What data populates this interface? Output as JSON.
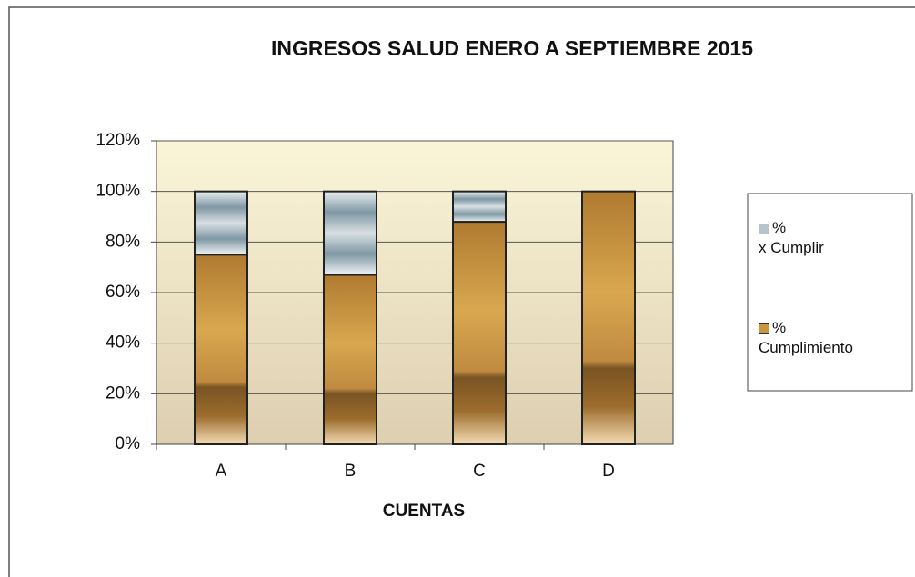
{
  "chart_data": {
    "type": "bar",
    "stacked": true,
    "title": "INGRESOS SALUD ENERO A SEPTIEMBRE 2015",
    "x_label": "CUENTAS",
    "categories": [
      "A",
      "B",
      "C",
      "D"
    ],
    "series": [
      {
        "name": "%\nCumplimiento",
        "color": "#c8963c",
        "values": [
          75,
          67,
          88,
          100
        ]
      },
      {
        "name": "%\nx Cumplir",
        "color": "#b8c4cc",
        "values": [
          25,
          33,
          12,
          0
        ]
      }
    ],
    "ylim": [
      0,
      120
    ],
    "yticks": [
      {
        "value": 0,
        "label": "0%"
      },
      {
        "value": 20,
        "label": "20%"
      },
      {
        "value": 40,
        "label": "40%"
      },
      {
        "value": 60,
        "label": "60%"
      },
      {
        "value": 80,
        "label": "80%"
      },
      {
        "value": 100,
        "label": "100%"
      },
      {
        "value": 120,
        "label": "120%"
      }
    ],
    "grid": true,
    "legend": "right"
  }
}
